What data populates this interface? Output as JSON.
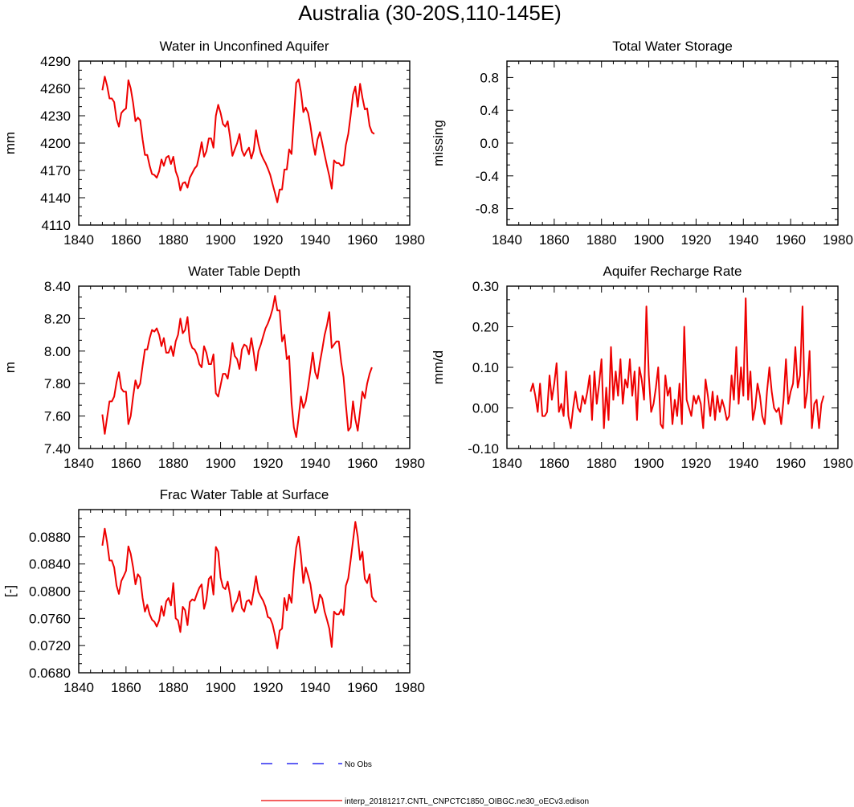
{
  "figure": {
    "title": "Australia (30-20S,110-145E)",
    "legend": [
      {
        "label": "No Obs",
        "style": "dashed",
        "color": "#0000ee"
      },
      {
        "label": "interp_20181217.CNTL_CNPCTC1850_OIBGC.ne30_oECv3.edison",
        "style": "solid",
        "color": "#ee0000"
      }
    ]
  },
  "chart_data": [
    {
      "type": "line",
      "title": "Water in Unconfined Aquifer",
      "ylabel": "mm",
      "xlim": [
        1840,
        1980
      ],
      "ylim": [
        4110,
        4290
      ],
      "xticks": [
        1840,
        1860,
        1880,
        1900,
        1920,
        1940,
        1960,
        1980
      ],
      "yticks": [
        4110,
        4140,
        4170,
        4200,
        4230,
        4260,
        4290
      ],
      "ytick_labels": [
        "4110",
        "4140",
        "4170",
        "4200",
        "4230",
        "4260",
        "4290"
      ],
      "series": [
        {
          "name": "interp_20181217.CNTL_CNPCTC1850_OIBGC.ne30_oECv3.edison",
          "color": "#ee0000",
          "x0": 1850,
          "values": [
            4258,
            4273,
            4263,
            4249,
            4249,
            4245,
            4226,
            4218,
            4233,
            4236,
            4238,
            4269,
            4260,
            4244,
            4224,
            4228,
            4225,
            4204,
            4187,
            4187,
            4175,
            4166,
            4165,
            4162,
            4169,
            4182,
            4175,
            4184,
            4186,
            4177,
            4185,
            4169,
            4162,
            4148,
            4156,
            4157,
            4151,
            4162,
            4167,
            4172,
            4175,
            4187,
            4201,
            4185,
            4191,
            4205,
            4205,
            4195,
            4230,
            4242,
            4233,
            4221,
            4218,
            4224,
            4207,
            4186,
            4193,
            4200,
            4210,
            4192,
            4186,
            4191,
            4195,
            4183,
            4192,
            4214,
            4199,
            4189,
            4183,
            4178,
            4172,
            4165,
            4155,
            4145,
            4135,
            4149,
            4149,
            4171,
            4171,
            4193,
            4188,
            4228,
            4266,
            4270,
            4256,
            4234,
            4239,
            4233,
            4219,
            4201,
            4187,
            4204,
            4212,
            4200,
            4187,
            4175,
            4164,
            4150,
            4181,
            4178,
            4178,
            4175,
            4176,
            4198,
            4210,
            4230,
            4253,
            4262,
            4240,
            4265,
            4250,
            4237,
            4238,
            4219,
            4212,
            4210
          ]
        }
      ]
    },
    {
      "type": "line",
      "title": "Total Water Storage",
      "ylabel": "missing",
      "xlim": [
        1840,
        1980
      ],
      "ylim": [
        -1.0,
        1.0
      ],
      "xticks": [
        1840,
        1860,
        1880,
        1900,
        1920,
        1940,
        1960,
        1980
      ],
      "yticks": [
        -0.8,
        -0.4,
        0.0,
        0.4,
        0.8
      ],
      "ytick_labels": [
        "-0.8",
        "-0.4",
        "0.0",
        "0.4",
        "0.8"
      ],
      "series": []
    },
    {
      "type": "line",
      "title": "Water Table Depth",
      "ylabel": "m",
      "xlim": [
        1840,
        1980
      ],
      "ylim": [
        7.4,
        8.4
      ],
      "xticks": [
        1840,
        1860,
        1880,
        1900,
        1920,
        1940,
        1960,
        1980
      ],
      "yticks": [
        7.4,
        7.6,
        7.8,
        8.0,
        8.2,
        8.4
      ],
      "ytick_labels": [
        "7.40",
        "7.60",
        "7.80",
        "8.00",
        "8.20",
        "8.40"
      ],
      "series": [
        {
          "name": "interp_20181217.CNTL_CNPCTC1850_OIBGC.ne30_oECv3.edison",
          "color": "#ee0000",
          "x0": 1850,
          "values": [
            7.61,
            7.49,
            7.59,
            7.69,
            7.69,
            7.72,
            7.81,
            7.87,
            7.77,
            7.75,
            7.75,
            7.55,
            7.6,
            7.72,
            7.82,
            7.77,
            7.8,
            7.91,
            8.01,
            8.01,
            8.08,
            8.13,
            8.12,
            8.14,
            8.1,
            8.03,
            8.08,
            7.99,
            7.99,
            8.03,
            7.97,
            8.06,
            8.1,
            8.2,
            8.11,
            8.13,
            8.21,
            8.06,
            8.02,
            8.01,
            7.98,
            7.92,
            7.9,
            8.03,
            7.99,
            7.92,
            7.92,
            7.98,
            7.74,
            7.72,
            7.79,
            7.86,
            7.86,
            7.83,
            7.92,
            8.05,
            7.97,
            7.95,
            7.89,
            8.01,
            8.04,
            8.03,
            7.98,
            8.08,
            7.99,
            7.88,
            8.0,
            8.04,
            8.09,
            8.14,
            8.17,
            8.21,
            8.26,
            8.34,
            8.25,
            8.25,
            8.06,
            8.1,
            7.95,
            7.97,
            7.68,
            7.53,
            7.47,
            7.59,
            7.72,
            7.65,
            7.69,
            7.78,
            7.88,
            7.99,
            7.87,
            7.83,
            7.93,
            8.01,
            8.1,
            8.16,
            8.24,
            8.02,
            8.04,
            8.06,
            8.06,
            7.93,
            7.84,
            7.67,
            7.51,
            7.53,
            7.69,
            7.58,
            7.51,
            7.63,
            7.75,
            7.71,
            7.8,
            7.86,
            7.9
          ]
        }
      ]
    },
    {
      "type": "line",
      "title": "Aquifer Recharge Rate",
      "ylabel": "mm/d",
      "xlim": [
        1840,
        1980
      ],
      "ylim": [
        -0.1,
        0.3
      ],
      "xticks": [
        1840,
        1860,
        1880,
        1900,
        1920,
        1940,
        1960,
        1980
      ],
      "yticks": [
        -0.1,
        0.0,
        0.1,
        0.2,
        0.3
      ],
      "ytick_labels": [
        "-0.10",
        "0.00",
        "0.10",
        "0.20",
        "0.30"
      ],
      "series": [
        {
          "name": "interp_20181217.CNTL_CNPCTC1850_OIBGC.ne30_oECv3.edison",
          "color": "#ee0000",
          "x0": 1850,
          "values": [
            0.04,
            0.06,
            0.03,
            -0.01,
            0.06,
            -0.02,
            -0.02,
            -0.01,
            0.08,
            0.02,
            0.06,
            0.11,
            -0.01,
            0.01,
            -0.02,
            0.09,
            -0.02,
            -0.05,
            0.0,
            0.04,
            0.0,
            -0.01,
            0.03,
            0.01,
            0.04,
            0.08,
            -0.03,
            0.09,
            0.01,
            0.06,
            0.12,
            -0.05,
            0.05,
            -0.03,
            0.15,
            0.02,
            0.09,
            0.03,
            0.12,
            0.01,
            0.07,
            0.05,
            0.12,
            0.03,
            0.09,
            -0.03,
            0.1,
            0.07,
            0.02,
            0.25,
            0.08,
            -0.01,
            0.01,
            0.05,
            0.1,
            -0.04,
            -0.05,
            0.08,
            0.03,
            0.05,
            -0.04,
            0.02,
            -0.02,
            0.06,
            -0.04,
            0.2,
            0.02,
            0.0,
            -0.02,
            0.03,
            0.01,
            0.03,
            0.01,
            -0.05,
            0.07,
            0.03,
            -0.02,
            0.04,
            -0.03,
            0.03,
            -0.01,
            0.02,
            0.0,
            -0.03,
            -0.02,
            0.08,
            0.02,
            0.15,
            0.01,
            0.1,
            0.03,
            0.27,
            0.02,
            0.09,
            -0.03,
            0.0,
            0.06,
            0.03,
            -0.02,
            -0.04,
            0.04,
            0.1,
            0.04,
            0.0,
            -0.01,
            0.0,
            -0.04,
            0.02,
            0.12,
            0.01,
            0.04,
            0.06,
            0.15,
            0.05,
            0.08,
            0.25,
            0.0,
            0.04,
            0.14,
            -0.05,
            0.01,
            0.02,
            -0.05,
            0.01,
            0.03
          ]
        }
      ]
    },
    {
      "type": "line",
      "title": "Frac Water Table at Surface",
      "ylabel": "[-]",
      "xlim": [
        1840,
        1980
      ],
      "ylim": [
        0.068,
        0.092
      ],
      "xticks": [
        1840,
        1860,
        1880,
        1900,
        1920,
        1940,
        1960,
        1980
      ],
      "yticks": [
        0.068,
        0.072,
        0.076,
        0.08,
        0.084,
        0.088
      ],
      "ytick_labels": [
        "0.0680",
        "0.0720",
        "0.0760",
        "0.0800",
        "0.0840",
        "0.0880"
      ],
      "series": [
        {
          "name": "interp_20181217.CNTL_CNPCTC1850_OIBGC.ne30_oECv3.edison",
          "color": "#ee0000",
          "x0": 1850,
          "values": [
            0.0867,
            0.0892,
            0.0872,
            0.0845,
            0.0845,
            0.0835,
            0.0808,
            0.0796,
            0.0815,
            0.0822,
            0.083,
            0.0866,
            0.0855,
            0.0835,
            0.081,
            0.0825,
            0.082,
            0.079,
            0.077,
            0.078,
            0.0766,
            0.0758,
            0.0755,
            0.0748,
            0.0757,
            0.0778,
            0.0764,
            0.0785,
            0.079,
            0.0779,
            0.0812,
            0.076,
            0.0757,
            0.074,
            0.0777,
            0.0772,
            0.075,
            0.0784,
            0.0788,
            0.0786,
            0.0796,
            0.0805,
            0.081,
            0.0774,
            0.0787,
            0.0818,
            0.0822,
            0.0795,
            0.0865,
            0.0858,
            0.082,
            0.0806,
            0.0803,
            0.0814,
            0.0795,
            0.077,
            0.078,
            0.0786,
            0.08,
            0.0775,
            0.077,
            0.0785,
            0.0787,
            0.078,
            0.08,
            0.0822,
            0.0799,
            0.0792,
            0.0786,
            0.0777,
            0.0762,
            0.076,
            0.0751,
            0.0735,
            0.0716,
            0.0742,
            0.0745,
            0.079,
            0.0772,
            0.0795,
            0.0783,
            0.083,
            0.0864,
            0.088,
            0.0852,
            0.0812,
            0.0835,
            0.0823,
            0.081,
            0.0786,
            0.0768,
            0.0775,
            0.0795,
            0.0789,
            0.077,
            0.0758,
            0.0745,
            0.0718,
            0.077,
            0.0766,
            0.0766,
            0.0773,
            0.0765,
            0.0808,
            0.0819,
            0.0845,
            0.0874,
            0.0902,
            0.088,
            0.0846,
            0.0858,
            0.0818,
            0.0812,
            0.0825,
            0.0792,
            0.0786,
            0.0784
          ]
        }
      ]
    }
  ]
}
